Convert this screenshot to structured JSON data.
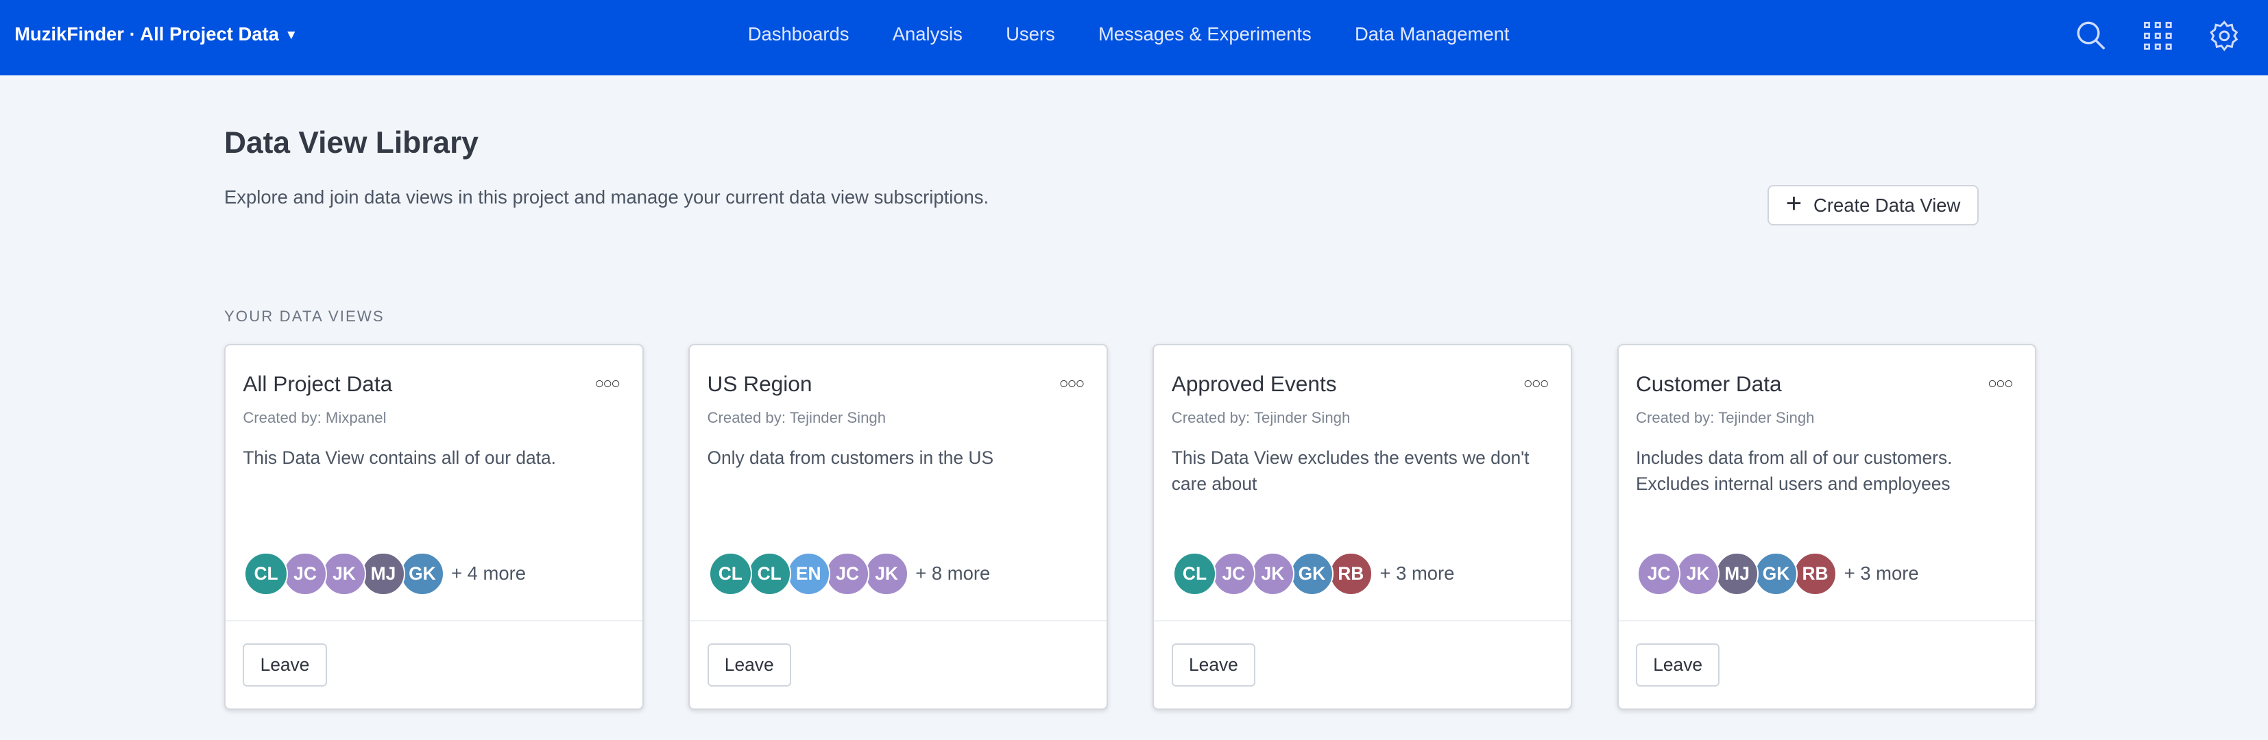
{
  "header": {
    "project_selector": "MuzikFinder · All Project Data",
    "nav": [
      "Dashboards",
      "Analysis",
      "Users",
      "Messages & Experiments",
      "Data Management"
    ],
    "icons": [
      "search-icon",
      "apps-grid-icon",
      "gear-icon"
    ],
    "background": "#0052e1"
  },
  "page": {
    "title": "Data View Library",
    "subtitle": "Explore and join data views in this project and manage your current data view subscriptions.",
    "create_button": "Create Data View",
    "section_label": "YOUR DATA VIEWS"
  },
  "avatar_colors": {
    "CL": "#2a9792",
    "JC": "#a38bc9",
    "JK": "#a38bc9",
    "MJ": "#6f6a88",
    "GK": "#4f8bbb",
    "EN": "#62a3e2",
    "RB": "#a24d56"
  },
  "cards": [
    {
      "title": "All Project Data",
      "created_by": "Created by: Mixpanel",
      "description": "This Data View contains all of our data.",
      "members": [
        "CL",
        "JC",
        "JK",
        "MJ",
        "GK"
      ],
      "more": "+ 4 more",
      "action": "Leave"
    },
    {
      "title": "US Region",
      "created_by": "Created by: Tejinder Singh",
      "description": "Only data from customers in the US",
      "members": [
        "CL",
        "CL",
        "EN",
        "JC",
        "JK"
      ],
      "more": "+ 8 more",
      "action": "Leave"
    },
    {
      "title": "Approved Events",
      "created_by": "Created by: Tejinder Singh",
      "description": "This Data View excludes the events we don't care about",
      "members": [
        "CL",
        "JC",
        "JK",
        "GK",
        "RB"
      ],
      "more": "+ 3 more",
      "action": "Leave"
    },
    {
      "title": "Customer Data",
      "created_by": "Created by: Tejinder Singh",
      "description": "Includes data from all of our customers. Excludes internal users and employees",
      "members": [
        "JC",
        "JK",
        "MJ",
        "GK",
        "RB"
      ],
      "more": "+ 3 more",
      "action": "Leave"
    }
  ]
}
